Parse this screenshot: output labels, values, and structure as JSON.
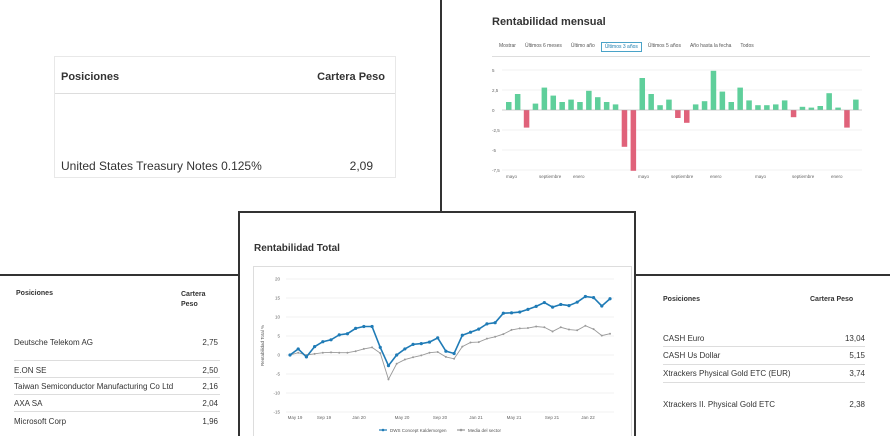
{
  "top_left": {
    "header_positions": "Posiciones",
    "header_weight": "Cartera Peso",
    "row": {
      "name": "United States Treasury Notes 0.125%",
      "value": "2,09"
    }
  },
  "monthly": {
    "title": "Rentabilidad mensual",
    "tabs": [
      "Mostrar",
      "Últimos 6 meses",
      "Último año",
      "Últimos 3 años",
      "Últimos 5 años",
      "Año hasta la fecha",
      "Todos"
    ],
    "active_tab_index": 3,
    "chart_data": {
      "type": "bar",
      "title": "Rentabilidad mensual",
      "ylim": [
        -7.5,
        5
      ],
      "y_ticks": [
        "5",
        "2,5",
        "0",
        "-2,5",
        "-5",
        "-7,5"
      ],
      "x_tick_labels": [
        "mayo",
        "septiembre",
        "enero",
        "mayo",
        "septiembre",
        "enero",
        "mayo",
        "septiembre",
        "enero"
      ],
      "values": [
        1.0,
        2.0,
        -2.2,
        0.8,
        2.8,
        1.8,
        1.0,
        1.3,
        1.0,
        2.4,
        1.6,
        1.0,
        0.7,
        -4.6,
        -7.6,
        4.0,
        2.0,
        0.6,
        1.3,
        -1.0,
        -1.6,
        0.7,
        1.1,
        4.9,
        2.3,
        1.0,
        2.8,
        1.2,
        0.6,
        0.6,
        0.7,
        1.2,
        -0.9,
        0.4,
        0.3,
        0.5,
        2.1,
        0.3,
        -2.2,
        1.3
      ],
      "colors": {
        "positive": "#5fcf9b",
        "negative": "#e0627a"
      }
    }
  },
  "total": {
    "title": "Rentabilidad Total",
    "chart_data": {
      "type": "line",
      "title": "Rentabilidad Total",
      "ylabel": "Rentabilidad Total %",
      "ylim": [
        -15,
        20
      ],
      "y_ticks": [
        "20",
        "15",
        "10",
        "5",
        "0",
        "-5",
        "-10",
        "-15"
      ],
      "x_tick_labels": [
        "May 19",
        "Sep 19",
        "Jan 20",
        "May 20",
        "Sep 20",
        "Jan 21",
        "May 21",
        "Sep 21",
        "Jan 22"
      ],
      "series": [
        {
          "name": "DWS Concept Kaldemorgen",
          "color": "#1f7bb6",
          "values": [
            0.0,
            1.6,
            -0.5,
            2.2,
            3.5,
            4.0,
            5.3,
            5.6,
            7.0,
            7.5,
            7.5,
            2.0,
            -2.8,
            0.0,
            1.6,
            2.8,
            3.0,
            3.4,
            4.5,
            1.0,
            0.4,
            5.2,
            6.0,
            6.8,
            8.2,
            8.5,
            11.0,
            11.1,
            11.3,
            12.0,
            12.8,
            13.8,
            12.6,
            13.3,
            13.0,
            13.9,
            15.4,
            15.1,
            12.9,
            14.8
          ]
        },
        {
          "name": "Media del sector",
          "color": "#9a9a9a",
          "values": [
            0.0,
            0.6,
            0.0,
            0.3,
            0.6,
            0.7,
            0.6,
            0.6,
            1.0,
            1.6,
            2.0,
            0.5,
            -6.4,
            -2.3,
            -1.2,
            -0.6,
            -0.1,
            0.6,
            0.8,
            -0.5,
            -1.0,
            2.2,
            3.3,
            3.4,
            4.3,
            4.8,
            5.5,
            6.6,
            7.0,
            7.1,
            7.5,
            7.3,
            6.2,
            7.3,
            6.7,
            6.5,
            7.7,
            6.8,
            5.1,
            5.6
          ]
        }
      ]
    }
  },
  "bottom_left": {
    "header_positions": "Posiciones",
    "header_weight_line1": "Cartera",
    "header_weight_line2": "Peso",
    "rows": [
      {
        "name": "Deutsche Telekom AG",
        "value": "2,75"
      },
      {
        "name": "E.ON SE",
        "value": "2,50"
      },
      {
        "name": "Taiwan Semiconductor Manufacturing Co Ltd",
        "value": "2,16"
      },
      {
        "name": "AXA SA",
        "value": "2,04"
      },
      {
        "name": "Microsoft Corp",
        "value": "1,96"
      }
    ]
  },
  "bottom_right": {
    "header_positions": "Posiciones",
    "header_weight": "Cartera Peso",
    "rows": [
      {
        "name": "CASH Euro",
        "value": "13,04"
      },
      {
        "name": "CASH Us Dollar",
        "value": "5,15"
      },
      {
        "name": "Xtrackers Physical Gold ETC (EUR)",
        "value": "3,74"
      },
      {
        "name": "Xtrackers II. Physical Gold ETC",
        "value": "2,38"
      }
    ]
  }
}
